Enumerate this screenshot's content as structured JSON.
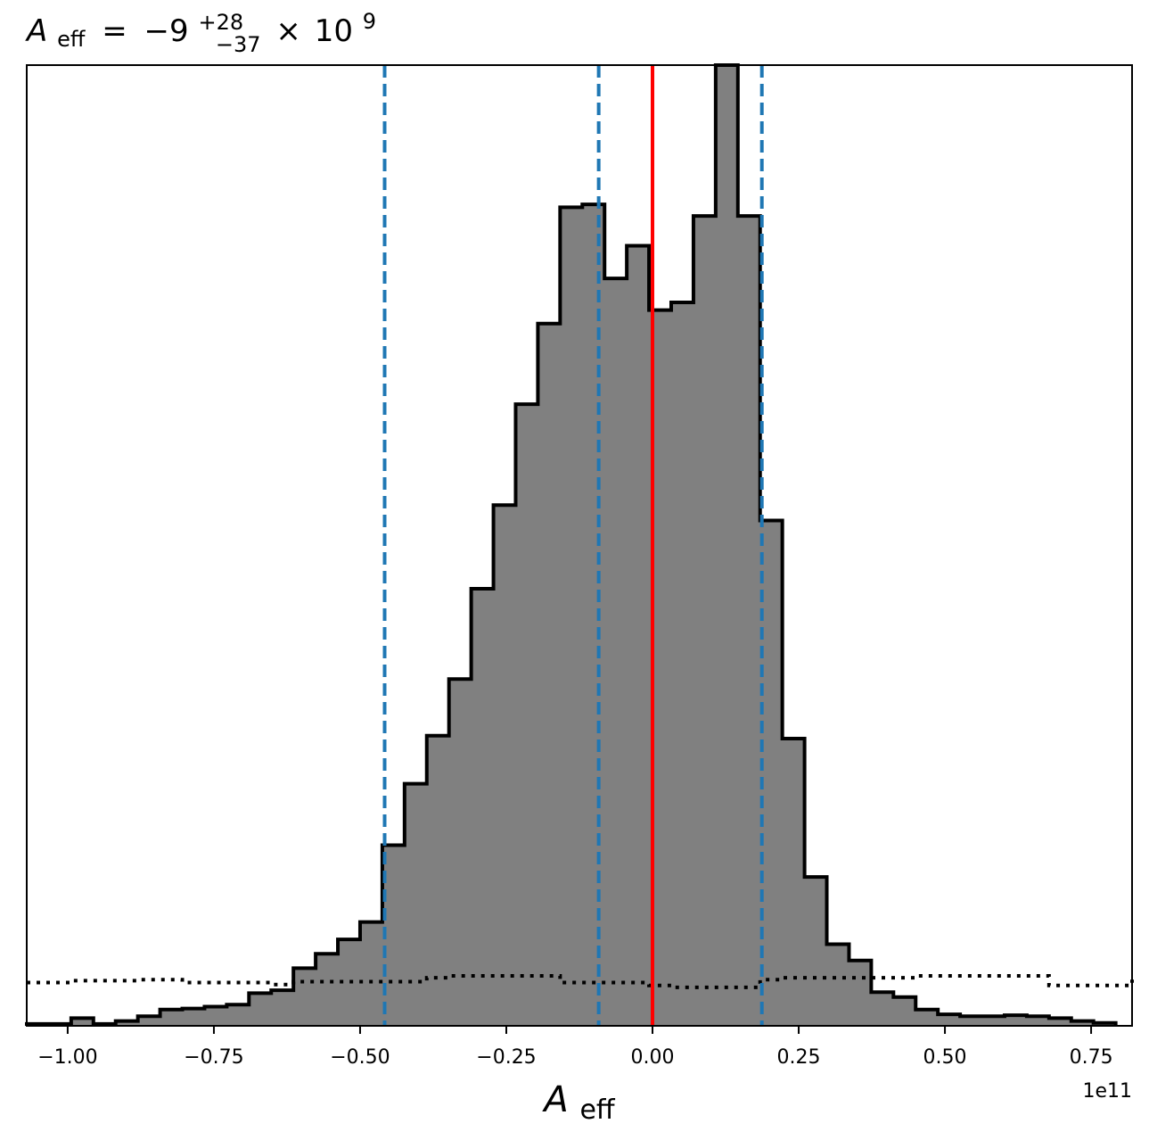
{
  "chart_data": {
    "type": "histogram",
    "title": {
      "symbol": "A",
      "subscript": "eff",
      "equals": "=",
      "value": "−9",
      "upper_err": "+28",
      "lower_err": "−37",
      "times": "×",
      "base": "10",
      "exponent": "9"
    },
    "xlabel": {
      "symbol": "A",
      "subscript": "eff"
    },
    "x_offset_text": "1e11",
    "x_scale": 100000000000.0,
    "xlim": [
      -1.07,
      0.82
    ],
    "ylim": [
      0,
      1.0
    ],
    "x_ticks": [
      -1.0,
      -0.75,
      -0.5,
      -0.25,
      0.0,
      0.25,
      0.5,
      0.75
    ],
    "x_tick_labels": [
      "−1.00",
      "−0.75",
      "−0.50",
      "−0.25",
      "0.00",
      "0.25",
      "0.50",
      "0.75"
    ],
    "grid": false,
    "histogram": {
      "bin_edges": [
        -1.07,
        -1.032,
        -0.994,
        -0.956,
        -0.918,
        -0.88,
        -0.842,
        -0.804,
        -0.766,
        -0.728,
        -0.69,
        -0.652,
        -0.614,
        -0.576,
        -0.538,
        -0.5,
        -0.462,
        -0.424,
        -0.386,
        -0.348,
        -0.31,
        -0.272,
        -0.234,
        -0.196,
        -0.158,
        -0.12,
        -0.082,
        -0.044,
        -0.006,
        0.032,
        0.07,
        0.108,
        0.146,
        0.184,
        0.222,
        0.26,
        0.298,
        0.336,
        0.374,
        0.412,
        0.45,
        0.488,
        0.526,
        0.564,
        0.602,
        0.64,
        0.678,
        0.716,
        0.754,
        0.792
      ],
      "heights": [
        0.002,
        0.002,
        0.008,
        0.002,
        0.005,
        0.01,
        0.017,
        0.018,
        0.02,
        0.022,
        0.034,
        0.037,
        0.06,
        0.075,
        0.09,
        0.108,
        0.188,
        0.252,
        0.302,
        0.361,
        0.455,
        0.542,
        0.647,
        0.731,
        0.852,
        0.855,
        0.778,
        0.812,
        0.745,
        0.753,
        0.843,
        1.0,
        0.843,
        0.526,
        0.299,
        0.155,
        0.085,
        0.068,
        0.035,
        0.03,
        0.017,
        0.012,
        0.01,
        0.01,
        0.011,
        0.01,
        0.008,
        0.005,
        0.003
      ],
      "fill_color": "#808080",
      "edge_color": "#000000"
    },
    "prior": {
      "style": "dotted",
      "x": [
        -1.07,
        -0.994,
        -0.88,
        -0.804,
        -0.728,
        -0.652,
        -0.614,
        -0.538,
        -0.5,
        -0.462,
        -0.424,
        -0.386,
        -0.348,
        -0.31,
        -0.272,
        -0.234,
        -0.196,
        -0.158,
        -0.12,
        -0.082,
        -0.044,
        -0.006,
        0.032,
        0.07,
        0.108,
        0.146,
        0.184,
        0.222,
        0.26,
        0.298,
        0.336,
        0.374,
        0.412,
        0.45,
        0.488,
        0.526,
        0.564,
        0.602,
        0.64,
        0.678,
        0.716,
        0.754,
        0.792,
        0.82
      ],
      "y": [
        0.045,
        0.047,
        0.048,
        0.045,
        0.045,
        0.043,
        0.046,
        0.046,
        0.046,
        0.046,
        0.046,
        0.05,
        0.052,
        0.052,
        0.052,
        0.052,
        0.052,
        0.045,
        0.045,
        0.045,
        0.045,
        0.042,
        0.04,
        0.04,
        0.04,
        0.04,
        0.048,
        0.05,
        0.05,
        0.05,
        0.05,
        0.05,
        0.05,
        0.052,
        0.052,
        0.052,
        0.052,
        0.052,
        0.052,
        0.042,
        0.042,
        0.042,
        0.042,
        0.048
      ],
      "color": "#000000"
    },
    "vlines": [
      {
        "x": -0.458,
        "style": "dashed",
        "color": "#1f77b4"
      },
      {
        "x": -0.092,
        "style": "dashed",
        "color": "#1f77b4"
      },
      {
        "x": 0.0,
        "style": "solid",
        "color": "#ff0000"
      },
      {
        "x": 0.187,
        "style": "dashed",
        "color": "#1f77b4"
      }
    ]
  }
}
